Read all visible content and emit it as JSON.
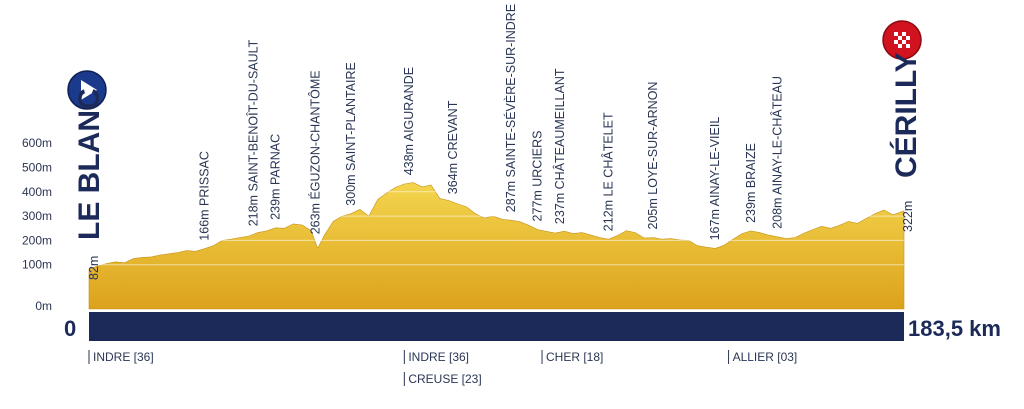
{
  "chart_data": {
    "type": "area",
    "title": "",
    "xlabel": "",
    "ylabel": "",
    "x_unit": "km",
    "y_ticks": [
      "0m",
      "100m",
      "200m",
      "300m",
      "400m",
      "500m",
      "600m"
    ],
    "ylim": [
      0,
      600
    ],
    "xlim": [
      0,
      183.5
    ],
    "distance_start": "0",
    "distance_end": "183,5 km",
    "start": {
      "name": "LE BLANC",
      "altitude": "82m"
    },
    "finish": {
      "name": "CÉRILLY",
      "altitude": "322m"
    },
    "points": [
      {
        "x": 0,
        "y": 82
      },
      {
        "x": 2,
        "y": 95
      },
      {
        "x": 4,
        "y": 105
      },
      {
        "x": 6,
        "y": 112
      },
      {
        "x": 8,
        "y": 108
      },
      {
        "x": 10,
        "y": 125
      },
      {
        "x": 12,
        "y": 130
      },
      {
        "x": 14,
        "y": 132
      },
      {
        "x": 16,
        "y": 140
      },
      {
        "x": 18,
        "y": 145
      },
      {
        "x": 20,
        "y": 150
      },
      {
        "x": 22,
        "y": 158
      },
      {
        "x": 24,
        "y": 155
      },
      {
        "x": 26,
        "y": 166
      },
      {
        "x": 28,
        "y": 178
      },
      {
        "x": 30,
        "y": 200
      },
      {
        "x": 32,
        "y": 205
      },
      {
        "x": 34,
        "y": 212
      },
      {
        "x": 36,
        "y": 218
      },
      {
        "x": 38,
        "y": 232
      },
      {
        "x": 40,
        "y": 239
      },
      {
        "x": 42,
        "y": 252
      },
      {
        "x": 44,
        "y": 250
      },
      {
        "x": 46,
        "y": 268
      },
      {
        "x": 48,
        "y": 263
      },
      {
        "x": 50,
        "y": 240
      },
      {
        "x": 51.5,
        "y": 168
      },
      {
        "x": 53,
        "y": 222
      },
      {
        "x": 55,
        "y": 278
      },
      {
        "x": 57,
        "y": 300
      },
      {
        "x": 59,
        "y": 310
      },
      {
        "x": 61,
        "y": 328
      },
      {
        "x": 63,
        "y": 300
      },
      {
        "x": 65,
        "y": 368
      },
      {
        "x": 67,
        "y": 395
      },
      {
        "x": 69,
        "y": 418
      },
      {
        "x": 71,
        "y": 432
      },
      {
        "x": 73,
        "y": 438
      },
      {
        "x": 75,
        "y": 420
      },
      {
        "x": 77,
        "y": 428
      },
      {
        "x": 79,
        "y": 372
      },
      {
        "x": 81,
        "y": 364
      },
      {
        "x": 83,
        "y": 350
      },
      {
        "x": 85,
        "y": 338
      },
      {
        "x": 87,
        "y": 310
      },
      {
        "x": 89,
        "y": 292
      },
      {
        "x": 91,
        "y": 300
      },
      {
        "x": 93,
        "y": 287
      },
      {
        "x": 95,
        "y": 283
      },
      {
        "x": 97,
        "y": 277
      },
      {
        "x": 99,
        "y": 262
      },
      {
        "x": 101,
        "y": 245
      },
      {
        "x": 103,
        "y": 237
      },
      {
        "x": 105,
        "y": 230
      },
      {
        "x": 107,
        "y": 238
      },
      {
        "x": 109,
        "y": 228
      },
      {
        "x": 111,
        "y": 232
      },
      {
        "x": 113,
        "y": 222
      },
      {
        "x": 115,
        "y": 212
      },
      {
        "x": 117,
        "y": 205
      },
      {
        "x": 119,
        "y": 220
      },
      {
        "x": 121,
        "y": 240
      },
      {
        "x": 123,
        "y": 232
      },
      {
        "x": 125,
        "y": 210
      },
      {
        "x": 127,
        "y": 212
      },
      {
        "x": 129,
        "y": 205
      },
      {
        "x": 131,
        "y": 208
      },
      {
        "x": 133,
        "y": 202
      },
      {
        "x": 135,
        "y": 200
      },
      {
        "x": 137,
        "y": 178
      },
      {
        "x": 139,
        "y": 172
      },
      {
        "x": 141,
        "y": 167
      },
      {
        "x": 143,
        "y": 180
      },
      {
        "x": 145,
        "y": 205
      },
      {
        "x": 147,
        "y": 228
      },
      {
        "x": 149,
        "y": 239
      },
      {
        "x": 151,
        "y": 232
      },
      {
        "x": 153,
        "y": 222
      },
      {
        "x": 155,
        "y": 215
      },
      {
        "x": 157,
        "y": 208
      },
      {
        "x": 159,
        "y": 212
      },
      {
        "x": 161,
        "y": 230
      },
      {
        "x": 163,
        "y": 245
      },
      {
        "x": 165,
        "y": 258
      },
      {
        "x": 167,
        "y": 250
      },
      {
        "x": 169,
        "y": 262
      },
      {
        "x": 171,
        "y": 278
      },
      {
        "x": 173,
        "y": 270
      },
      {
        "x": 175,
        "y": 290
      },
      {
        "x": 177,
        "y": 310
      },
      {
        "x": 179,
        "y": 325
      },
      {
        "x": 181,
        "y": 305
      },
      {
        "x": 183.5,
        "y": 322
      }
    ],
    "annotations": [
      {
        "x": 26,
        "text": "166m PRISSAC"
      },
      {
        "x": 37,
        "text": "218m SAINT-BENOÎT-DU-SAULT"
      },
      {
        "x": 42,
        "text": "239m PARNAC"
      },
      {
        "x": 51,
        "text": "263m ÉGUZON-CHANTÔME"
      },
      {
        "x": 59,
        "text": "300m SAINT-PLANTAIRE"
      },
      {
        "x": 72,
        "text": "438m AIGURANDE"
      },
      {
        "x": 82,
        "text": "364m CREVANT"
      },
      {
        "x": 95,
        "text": "287m SAINTE-SÉVÈRE-SUR-INDRE"
      },
      {
        "x": 101,
        "text": "277m URCIERS"
      },
      {
        "x": 106,
        "text": "237m CHÂTEAUMEILLANT"
      },
      {
        "x": 117,
        "text": "212m LE CHÂTELET"
      },
      {
        "x": 127,
        "text": "205m LOYE-SUR-ARNON"
      },
      {
        "x": 141,
        "text": "167m AINAY-LE-VIEIL"
      },
      {
        "x": 149,
        "text": "239m BRAIZE"
      },
      {
        "x": 155,
        "text": "208m AINAY-LE-CHÂTEAU"
      }
    ],
    "departments": [
      {
        "x": 0,
        "text": "INDRE [36]",
        "row": 0
      },
      {
        "x": 71,
        "text": "INDRE [36]",
        "row": 0
      },
      {
        "x": 71,
        "text": "CREUSE [23]",
        "row": 1
      },
      {
        "x": 102,
        "text": "CHER [18]",
        "row": 0
      },
      {
        "x": 144,
        "text": "ALLIER [03]",
        "row": 0
      }
    ],
    "colors": {
      "terrain": "#e8b82a",
      "terrain_light": "#f6dc72",
      "base": "#1c2a5a",
      "start_marker": "#1c3a8c",
      "finish_marker": "#d0131e"
    }
  }
}
